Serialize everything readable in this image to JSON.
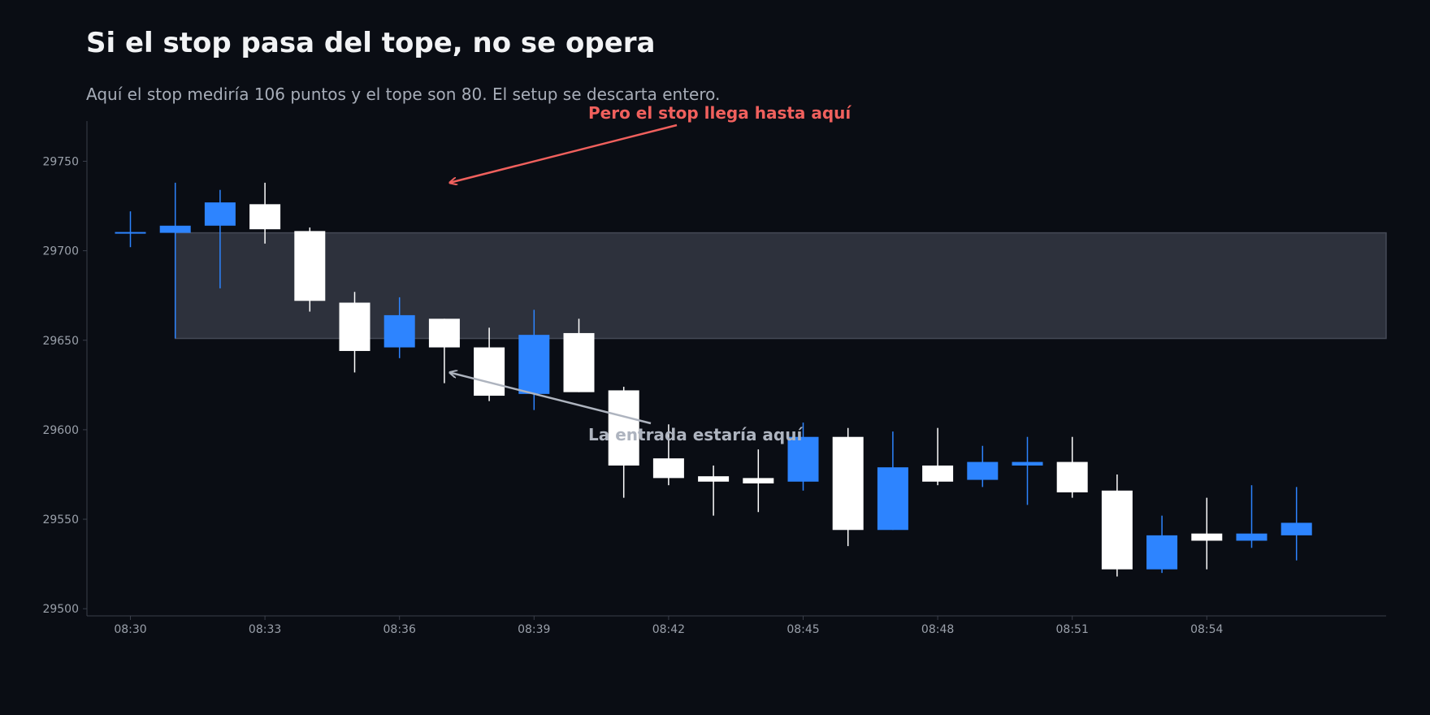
{
  "chart_data": {
    "type": "candlestick",
    "title": "Si el stop pasa del tope, no se opera",
    "subtitle": "Aquí el stop mediría 106 puntos y el tope son 80. El setup se descarta entero.",
    "categories": [
      "08:30",
      null,
      null,
      "08:33",
      null,
      null,
      "08:36",
      null,
      null,
      "08:39",
      null,
      null,
      "08:42",
      null,
      null,
      "08:45",
      null,
      null,
      "08:48",
      null,
      null,
      "08:51",
      null,
      null,
      "08:54",
      null,
      null
    ],
    "open": [
      29710,
      29710,
      29714,
      29726,
      29711,
      29671,
      29646,
      29662,
      29646,
      29620,
      29654,
      29622,
      29584,
      29574,
      29573,
      29571,
      29596,
      29544,
      29580,
      29572,
      29580,
      29582,
      29566,
      29522,
      29542,
      29538,
      29541
    ],
    "high": [
      29722,
      29738,
      29734,
      29738,
      29713,
      29677,
      29674,
      29662,
      29657,
      29667,
      29662,
      29624,
      29603,
      29580,
      29589,
      29604,
      29601,
      29599,
      29601,
      29591,
      29596,
      29596,
      29575,
      29552,
      29562,
      29569,
      29568
    ],
    "low": [
      29702,
      29651,
      29679,
      29704,
      29666,
      29632,
      29640,
      29626,
      29616,
      29611,
      29621,
      29562,
      29569,
      29552,
      29554,
      29566,
      29535,
      29544,
      29569,
      29568,
      29558,
      29562,
      29518,
      29520,
      29522,
      29534,
      29527
    ],
    "close": [
      29710,
      29714,
      29727,
      29712,
      29672,
      29644,
      29664,
      29646,
      29619,
      29653,
      29621,
      29580,
      29573,
      29571,
      29570,
      29596,
      29544,
      29579,
      29571,
      29582,
      29582,
      29565,
      29522,
      29541,
      29538,
      29542,
      29548
    ],
    "up_color": "#2d84ff",
    "down_color": "#ffffff",
    "zone": {
      "low": 29651,
      "high": 29710,
      "color": "#2d313c"
    },
    "annotations": [
      {
        "text": "Pero el stop llega hasta aquí",
        "value": 29738,
        "color": "#f0605d"
      },
      {
        "text": "La entrada estaría aquí",
        "value": 29632,
        "color": "#aeb4bf"
      }
    ],
    "ylim": [
      29496,
      29772
    ],
    "yticks": [
      29500,
      29550,
      29600,
      29650,
      29700,
      29750
    ]
  }
}
